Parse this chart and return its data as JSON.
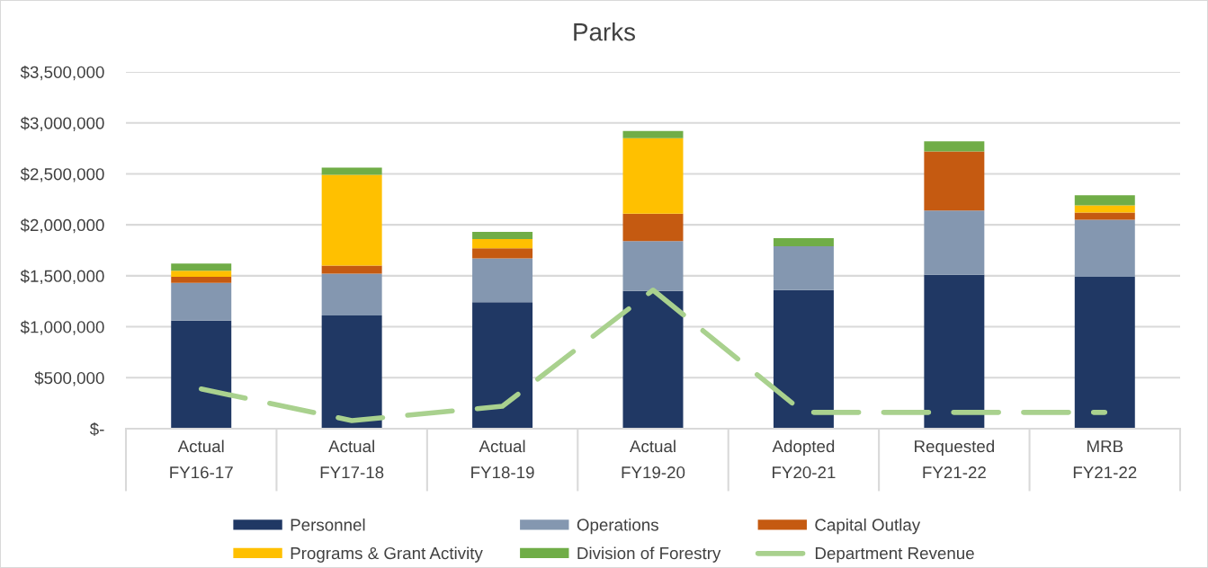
{
  "chart_data": {
    "type": "bar",
    "title": "Parks",
    "stacked": true,
    "categories": [
      "Actual\nFY16-17",
      "Actual\nFY17-18",
      "Actual\nFY18-19",
      "Actual\nFY19-20",
      "Adopted\nFY20-21",
      "Requested\nFY21-22",
      "MRB\nFY21-22"
    ],
    "series": [
      {
        "name": "Personnel",
        "color": "#203864",
        "values": [
          1060000,
          1110000,
          1240000,
          1350000,
          1360000,
          1510000,
          1490000
        ]
      },
      {
        "name": "Operations",
        "color": "#8497b0",
        "values": [
          370000,
          410000,
          430000,
          490000,
          430000,
          630000,
          560000
        ]
      },
      {
        "name": "Capital Outlay",
        "color": "#c55a11",
        "values": [
          60000,
          80000,
          100000,
          270000,
          null,
          580000,
          70000
        ]
      },
      {
        "name": "Programs & Grant Activity",
        "color": "#ffc000",
        "values": [
          60000,
          890000,
          90000,
          740000,
          null,
          null,
          70000
        ]
      },
      {
        "name": "Division of Forestry",
        "color": "#70ad47",
        "values": [
          70000,
          70000,
          70000,
          70000,
          80000,
          100000,
          100000
        ]
      },
      {
        "name": "Department Revenue",
        "type": "line",
        "color": "#a9d18e",
        "line_style": "dashed",
        "values": [
          390000,
          80000,
          220000,
          1360000,
          160000,
          160000,
          160000
        ]
      }
    ],
    "ylim": [
      0,
      3500000
    ],
    "yticks": [
      {
        "value": 0,
        "label": "$-"
      },
      {
        "value": 500000,
        "label": "$500,000"
      },
      {
        "value": 1000000,
        "label": "$1,000,000"
      },
      {
        "value": 1500000,
        "label": "$1,500,000"
      },
      {
        "value": 2000000,
        "label": "$2,000,000"
      },
      {
        "value": 2500000,
        "label": "$2,500,000"
      },
      {
        "value": 3000000,
        "label": "$3,000,000"
      },
      {
        "value": 3500000,
        "label": "$3,500,000"
      }
    ],
    "grid": "y",
    "legend": "bottom"
  }
}
